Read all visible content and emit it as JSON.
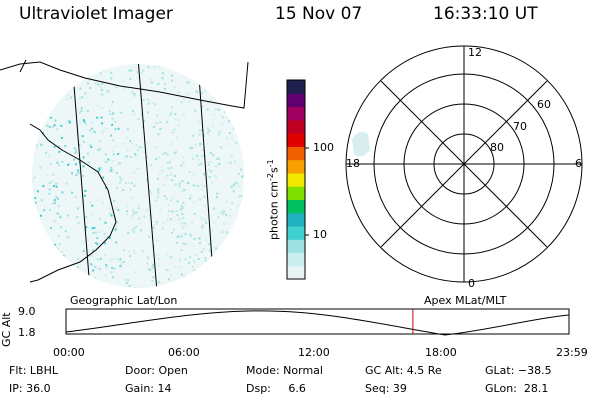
{
  "header": {
    "instrument": "Ultraviolet Imager",
    "date": "15 Nov 07",
    "time": "16:33:10 UT"
  },
  "colorbar": {
    "unit_text": "photon cm",
    "unit_sup": "-2",
    "unit_s": "s",
    "unit_sup2": "-1",
    "tick_100": "100",
    "tick_10": "10",
    "colors": [
      "#e8f4f4",
      "#cdeeee",
      "#9fe0e0",
      "#40d0d0",
      "#20b0c0",
      "#00c060",
      "#80e000",
      "#f0e800",
      "#f8a000",
      "#f06000",
      "#e00000",
      "#c00020",
      "#a00060",
      "#600070",
      "#202050"
    ]
  },
  "polar": {
    "mlt_12": "12",
    "mlt_18": "18",
    "mlt_6": "6",
    "mlt_0": "0",
    "lat_60": "60",
    "lat_70": "70",
    "lat_80": "80"
  },
  "timeline": {
    "y_axis_label": "GC Alt",
    "y_top": "9.0",
    "y_bottom": "1.8",
    "left_caption": "Geographic Lat/Lon",
    "right_caption": "Apex MLat/MLT",
    "ticks": [
      "00:00",
      "06:00",
      "12:00",
      "18:00",
      "23:59"
    ],
    "marker_hour": 16.55,
    "marker_color": "#c00000"
  },
  "info": {
    "filter": "Flt: LBHL",
    "door": "Door: Open",
    "mode": "Mode: Normal",
    "gc_alt": "GC Alt: 4.5 Re",
    "glat": "GLat: −38.5",
    "ip": "IP: 36.0",
    "gain": "Gain: 14",
    "dsp": "Dsp:     6.6",
    "seq": "Seq: 39",
    "glon": "GLon:  28.1"
  }
}
